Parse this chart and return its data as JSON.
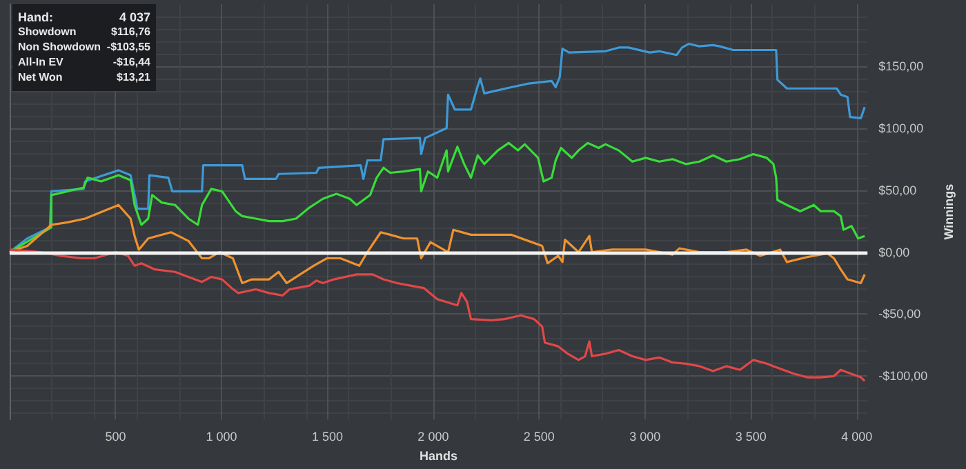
{
  "chart_data": {
    "type": "line",
    "xlabel": "Hands",
    "ylabel": "Winnings",
    "xlim": [
      0,
      4050
    ],
    "ylim": [
      -135,
      200
    ],
    "xticks": [
      500,
      {
        "value": 1000,
        "label": "1 000"
      },
      {
        "value": 1500,
        "label": "1 500"
      },
      {
        "value": 2000,
        "label": "2 000"
      },
      {
        "value": 2500,
        "label": "2 500"
      },
      {
        "value": 3000,
        "label": "3 000"
      },
      {
        "value": 3500,
        "label": "3 500"
      },
      {
        "value": 4000,
        "label": "4 000"
      }
    ],
    "yticks": [
      {
        "value": -100,
        "label": "-$100,00"
      },
      {
        "value": -50,
        "label": "-$50,00"
      },
      {
        "value": 0,
        "label": "$0,00"
      },
      {
        "value": 50,
        "label": "$50,00"
      },
      {
        "value": 100,
        "label": "$100,00"
      },
      {
        "value": 150,
        "label": "$150,00"
      }
    ],
    "grid": true,
    "marker": "none",
    "ref_lines": [
      {
        "axis": "y",
        "value": 0,
        "color": "#f2f2f2"
      }
    ],
    "annotations": [
      "Hand:",
      "4 037",
      "Showdown",
      "$116,76",
      "Non Showdown",
      "-$103,55",
      "All-In EV",
      "-$16,44",
      "Net Won",
      "$13,21"
    ],
    "series": [
      {
        "color": "#3d9ad8",
        "x": [
          0,
          83,
          190,
          197,
          349,
          356,
          514,
          571,
          603,
          654,
          660,
          749,
          768,
          908,
          914,
          1098,
          1111,
          1257,
          1270,
          1448,
          1460,
          1657,
          1670,
          1689,
          1752,
          1765,
          1937,
          1943,
          1962,
          2063,
          2070,
          2102,
          2178,
          2210,
          2222,
          2241,
          2368,
          2451,
          2559,
          2578,
          2597,
          2610,
          2641,
          2813,
          2876,
          2921,
          3022,
          3067,
          3149,
          3175,
          3206,
          3257,
          3321,
          3352,
          3416,
          3619,
          3625,
          3670,
          3765,
          3905,
          3924,
          3956,
          3968,
          4019,
          4037
        ],
        "values": [
          0,
          11,
          20,
          49,
          51,
          57,
          66,
          62,
          35,
          35,
          62,
          60,
          49,
          49,
          70,
          70,
          59,
          59,
          63,
          64,
          68,
          70,
          59,
          74,
          74,
          91,
          92,
          79,
          92,
          100,
          127,
          115,
          115,
          134,
          140,
          128,
          133,
          136,
          138,
          133,
          141,
          164,
          161,
          162,
          165,
          165,
          161,
          162,
          159,
          165,
          168,
          166,
          167,
          166,
          163,
          163,
          139,
          132,
          132,
          132,
          127,
          125,
          109,
          108,
          117
        ]
      },
      {
        "color": "#38dd38",
        "x": [
          0,
          197,
          197,
          273,
          349,
          368,
          432,
          514,
          571,
          590,
          622,
          654,
          673,
          717,
          781,
          844,
          889,
          908,
          952,
          1003,
          1067,
          1098,
          1162,
          1225,
          1289,
          1352,
          1416,
          1479,
          1543,
          1606,
          1638,
          1702,
          1733,
          1765,
          1797,
          1860,
          1937,
          1943,
          1975,
          2019,
          2063,
          2070,
          2114,
          2146,
          2178,
          2210,
          2241,
          2305,
          2356,
          2400,
          2432,
          2495,
          2521,
          2559,
          2578,
          2603,
          2654,
          2686,
          2730,
          2781,
          2813,
          2876,
          2940,
          3003,
          3067,
          3130,
          3194,
          3257,
          3321,
          3384,
          3448,
          3511,
          3575,
          3606,
          3619,
          3625,
          3670,
          3733,
          3797,
          3829,
          3892,
          3924,
          3937,
          3975,
          4006,
          4037
        ],
        "values": [
          0,
          20,
          46,
          49,
          52,
          60,
          57,
          62,
          58,
          38,
          22,
          27,
          46,
          40,
          38,
          27,
          22,
          38,
          51,
          49,
          33,
          29,
          27,
          25,
          25,
          27,
          36,
          43,
          47,
          43,
          38,
          46,
          60,
          68,
          64,
          65,
          67,
          49,
          65,
          60,
          82,
          65,
          85,
          71,
          60,
          78,
          71,
          82,
          88,
          82,
          87,
          76,
          57,
          60,
          74,
          84,
          76,
          82,
          88,
          84,
          87,
          82,
          73,
          76,
          73,
          75,
          71,
          73,
          78,
          73,
          75,
          79,
          76,
          71,
          60,
          42,
          38,
          33,
          38,
          33,
          33,
          29,
          18,
          21,
          11,
          13
        ]
      },
      {
        "color": "#f0922e",
        "x": [
          0,
          83,
          197,
          273,
          356,
          514,
          571,
          590,
          610,
          654,
          762,
          844,
          908,
          940,
          990,
          1054,
          1098,
          1143,
          1225,
          1270,
          1308,
          1435,
          1498,
          1562,
          1651,
          1689,
          1752,
          1797,
          1860,
          1924,
          1943,
          1987,
          2070,
          2095,
          2178,
          2368,
          2514,
          2540,
          2590,
          2610,
          2622,
          2686,
          2737,
          2749,
          2844,
          3003,
          3130,
          3162,
          3257,
          3384,
          3479,
          3543,
          3638,
          3670,
          3765,
          3860,
          3892,
          3924,
          3956,
          4019,
          4037
        ],
        "values": [
          0,
          5,
          22,
          24,
          27,
          38,
          27,
          13,
          2,
          11,
          16,
          9,
          -5,
          -5,
          0,
          -5,
          -25,
          -22,
          -22,
          -16,
          -25,
          -11,
          -5,
          -5,
          -11,
          0,
          16,
          14,
          11,
          11,
          -5,
          8,
          0,
          18,
          14,
          14,
          5,
          -9,
          -3,
          -8,
          10,
          0,
          13,
          0,
          2,
          2,
          -2,
          3,
          0,
          0,
          2,
          -3,
          2,
          -8,
          -4,
          -1,
          -5,
          -14,
          -22,
          -25,
          -18
        ]
      },
      {
        "color": "#e04848",
        "x": [
          0,
          146,
          241,
          337,
          400,
          502,
          559,
          590,
          622,
          686,
          781,
          844,
          908,
          952,
          1003,
          1048,
          1079,
          1162,
          1225,
          1289,
          1321,
          1416,
          1448,
          1479,
          1530,
          1638,
          1714,
          1765,
          1829,
          1892,
          1956,
          2019,
          2114,
          2133,
          2159,
          2178,
          2273,
          2337,
          2413,
          2476,
          2514,
          2527,
          2590,
          2635,
          2686,
          2717,
          2737,
          2749,
          2813,
          2876,
          2940,
          3003,
          3067,
          3130,
          3194,
          3257,
          3321,
          3384,
          3448,
          3511,
          3575,
          3606,
          3702,
          3765,
          3829,
          3892,
          3924,
          3956,
          4019,
          4037
        ],
        "values": [
          2,
          0,
          -3,
          -5,
          -5,
          0,
          -3,
          -11,
          -9,
          -14,
          -16,
          -20,
          -24,
          -20,
          -22,
          -29,
          -33,
          -30,
          -33,
          -35,
          -30,
          -27,
          -23,
          -25,
          -22,
          -18,
          -18,
          -22,
          -25,
          -27,
          -29,
          -38,
          -43,
          -33,
          -40,
          -54,
          -55,
          -54,
          -51,
          -54,
          -60,
          -73,
          -76,
          -82,
          -87,
          -84,
          -72,
          -84,
          -82,
          -79,
          -84,
          -87,
          -85,
          -89,
          -90,
          -92,
          -96,
          -92,
          -95,
          -87,
          -90,
          -92,
          -98,
          -101,
          -101,
          -100,
          -95,
          -97,
          -101,
          -104
        ]
      }
    ]
  }
}
